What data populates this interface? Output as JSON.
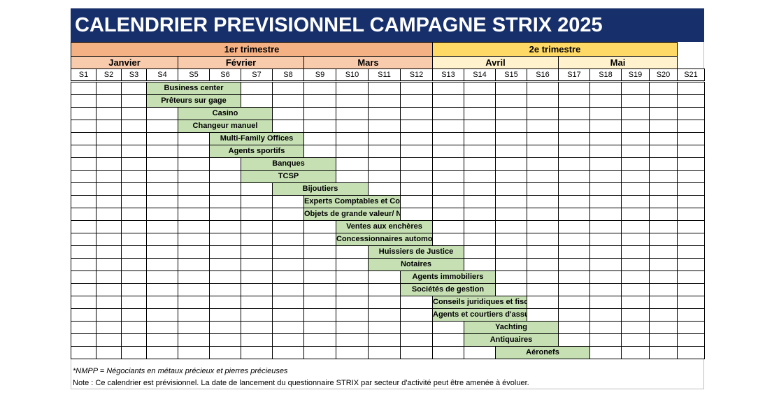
{
  "title": "CALENDRIER PREVISIONNEL CAMPAGNE STRIX 2025",
  "colors": {
    "title_bg": "#17306b",
    "q1": "#f4b183",
    "q2": "#ffd966",
    "q1_month": "#f8cbad",
    "q2_month": "#fff2cc",
    "bar": "#c6e0b4"
  },
  "quarters": [
    {
      "label": "1er trimestre",
      "start": 0,
      "span": 12,
      "color": "#f4b183"
    },
    {
      "label": "2e trimestre",
      "start": 12,
      "span": 8,
      "color": "#ffd966"
    }
  ],
  "months": [
    {
      "label": "Janvier",
      "start": 0,
      "span": 4,
      "color": "#f8cbad"
    },
    {
      "label": "Février",
      "start": 4,
      "span": 4,
      "color": "#f8cbad"
    },
    {
      "label": "Mars",
      "start": 8,
      "span": 4,
      "color": "#f8cbad"
    },
    {
      "label": "Avril",
      "start": 12,
      "span": 4,
      "color": "#fff2cc"
    },
    {
      "label": "Mai",
      "start": 16,
      "span": 4,
      "color": "#fff2cc"
    }
  ],
  "weeks": [
    "S1",
    "S2",
    "S3",
    "S4",
    "S5",
    "S6",
    "S7",
    "S8",
    "S9",
    "S10",
    "S11",
    "S12",
    "S13",
    "S14",
    "S15",
    "S16",
    "S17",
    "S18",
    "S19",
    "S20",
    "S21"
  ],
  "sectors": [
    {
      "label": "Business center",
      "start": 3,
      "end": 6
    },
    {
      "label": "Prêteurs sur gage",
      "start": 3,
      "end": 6
    },
    {
      "label": "Casino",
      "start": 4,
      "end": 7
    },
    {
      "label": "Changeur manuel",
      "start": 4,
      "end": 7
    },
    {
      "label": "Multi-Family Offices",
      "start": 5,
      "end": 8
    },
    {
      "label": "Agents sportifs",
      "start": 5,
      "end": 8
    },
    {
      "label": "Banques",
      "start": 6,
      "end": 9
    },
    {
      "label": "TCSP",
      "start": 6,
      "end": 9
    },
    {
      "label": "Bijoutiers",
      "start": 7,
      "end": 10
    },
    {
      "label": "Experts Comptables et Comptables",
      "start": 8,
      "end": 11
    },
    {
      "label": "Objets de grande valeur/ NMPP*",
      "start": 8,
      "end": 11
    },
    {
      "label": "Ventes aux enchères",
      "start": 9,
      "end": 12
    },
    {
      "label": "Concessionnaires automobiles",
      "start": 9,
      "end": 12
    },
    {
      "label": "Huissiers de Justice",
      "start": 10,
      "end": 13
    },
    {
      "label": "Notaires",
      "start": 10,
      "end": 13
    },
    {
      "label": "Agents immobiliers",
      "start": 11,
      "end": 14
    },
    {
      "label": "Sociétés de gestion",
      "start": 11,
      "end": 14
    },
    {
      "label": "Conseils juridiques et fiscaux",
      "start": 12,
      "end": 15
    },
    {
      "label": "Agents et courtiers d'assurance",
      "start": 12,
      "end": 15
    },
    {
      "label": "Yachting",
      "start": 13,
      "end": 16
    },
    {
      "label": "Antiquaires",
      "start": 13,
      "end": 16
    },
    {
      "label": "Aéronefs",
      "start": 14,
      "end": 17
    }
  ],
  "footnote": "*NMPP =  Négociants en métaux précieux et pierres précieuses",
  "note": "Note : Ce calendrier est prévisionnel. La date de lancement du questionnaire STRIX par secteur d'activité peut être amenée à évoluer."
}
